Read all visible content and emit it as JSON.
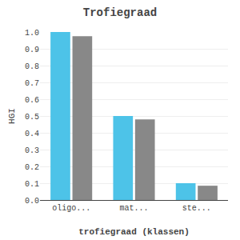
{
  "chart_data": {
    "type": "bar",
    "title": "Trofiegraad",
    "xlabel": "trofiegraad (klassen)",
    "ylabel": "HGI",
    "categories": [
      "oligo...",
      "mat...",
      "ste..."
    ],
    "series": [
      {
        "color": "#4DC3E8",
        "values": [
          1.0,
          0.5,
          0.1
        ]
      },
      {
        "color": "#888888",
        "values": [
          0.975,
          0.48,
          0.085
        ]
      }
    ],
    "ylim": [
      0.0,
      1.0
    ],
    "yticks": [
      {
        "value": 0.0,
        "label": "0.0"
      },
      0.1,
      0.2,
      0.3,
      0.4,
      0.5,
      0.6,
      0.7,
      0.8,
      0.9,
      {
        "value": 1.0,
        "label": "1.0"
      }
    ],
    "grid": true
  }
}
